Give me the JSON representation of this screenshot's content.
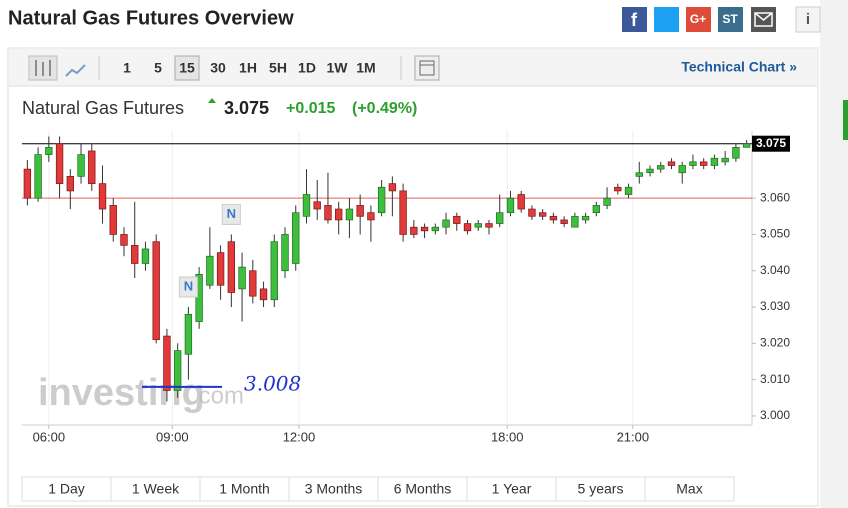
{
  "header": {
    "title": "Natural Gas Futures Overview",
    "share_icons": [
      "G+",
      "ST"
    ]
  },
  "toolbar": {
    "intervals": [
      "1",
      "5",
      "15",
      "30",
      "1H",
      "5H",
      "1D",
      "1W",
      "1M"
    ],
    "selected": "15",
    "link": "Technical Chart »"
  },
  "quote": {
    "name": "Natural Gas Futures",
    "price": "3.075",
    "change": "+0.015",
    "change_pct": "(+0.49%)"
  },
  "watermark": [
    "investing",
    ".com"
  ],
  "chart_data": {
    "type": "candlestick",
    "up_color": "#3dbf3d",
    "down_color": "#e03a3a",
    "open": [
      3.068,
      3.06,
      3.072,
      3.075,
      3.066,
      3.066,
      3.073,
      3.064,
      3.058,
      3.05,
      3.047,
      3.042,
      3.048,
      3.022,
      3.007,
      3.017,
      3.026,
      3.036,
      3.045,
      3.048,
      3.035,
      3.04,
      3.035,
      3.032,
      3.04,
      3.042,
      3.055,
      3.059,
      3.058,
      3.057,
      3.054,
      3.058,
      3.056,
      3.056,
      3.064,
      3.062,
      3.052,
      3.052,
      3.051,
      3.052,
      3.055,
      3.053,
      3.052,
      3.053,
      3.053,
      3.056,
      3.061,
      3.057,
      3.056,
      3.055,
      3.054,
      3.052,
      3.054,
      3.056,
      3.058,
      3.063,
      3.061,
      3.066,
      3.067,
      3.068,
      3.07,
      3.067,
      3.069,
      3.07,
      3.069,
      3.07,
      3.071,
      3.074
    ],
    "high": [
      3.0705,
      3.074,
      3.077,
      3.077,
      3.068,
      3.075,
      3.075,
      3.069,
      3.06,
      3.052,
      3.059,
      3.048,
      3.05,
      3.024,
      3.02,
      3.03,
      3.041,
      3.052,
      3.047,
      3.05,
      3.045,
      3.043,
      3.037,
      3.05,
      3.052,
      3.058,
      3.068,
      3.065,
      3.067,
      3.059,
      3.06,
      3.061,
      3.058,
      3.065,
      3.066,
      3.064,
      3.054,
      3.053,
      3.053,
      3.056,
      3.056,
      3.054,
      3.054,
      3.054,
      3.061,
      3.062,
      3.062,
      3.058,
      3.057,
      3.056,
      3.055,
      3.056,
      3.056,
      3.059,
      3.063,
      3.064,
      3.064,
      3.07,
      3.069,
      3.07,
      3.071,
      3.07,
      3.072,
      3.071,
      3.072,
      3.073,
      3.075,
      3.076
    ],
    "low": [
      3.058,
      3.059,
      3.07,
      3.06,
      3.057,
      3.064,
      3.062,
      3.053,
      3.048,
      3.044,
      3.038,
      3.04,
      3.02,
      3.004,
      3.005,
      3.01,
      3.024,
      3.035,
      3.032,
      3.03,
      3.026,
      3.031,
      3.03,
      3.03,
      3.038,
      3.04,
      3.053,
      3.054,
      3.053,
      3.05,
      3.049,
      3.05,
      3.048,
      3.055,
      3.055,
      3.048,
      3.049,
      3.049,
      3.05,
      3.05,
      3.051,
      3.05,
      3.051,
      3.05,
      3.052,
      3.055,
      3.056,
      3.054,
      3.054,
      3.053,
      3.052,
      3.052,
      3.053,
      3.055,
      3.057,
      3.061,
      3.06,
      3.064,
      3.066,
      3.067,
      3.068,
      3.064,
      3.068,
      3.068,
      3.068,
      3.069,
      3.07,
      3.074
    ],
    "close": [
      3.06,
      3.072,
      3.074,
      3.064,
      3.062,
      3.072,
      3.064,
      3.057,
      3.05,
      3.047,
      3.042,
      3.046,
      3.021,
      3.007,
      3.018,
      3.028,
      3.039,
      3.044,
      3.036,
      3.034,
      3.041,
      3.033,
      3.032,
      3.048,
      3.05,
      3.056,
      3.061,
      3.057,
      3.054,
      3.054,
      3.057,
      3.055,
      3.054,
      3.063,
      3.062,
      3.05,
      3.05,
      3.051,
      3.052,
      3.054,
      3.053,
      3.051,
      3.053,
      3.052,
      3.056,
      3.06,
      3.057,
      3.055,
      3.055,
      3.054,
      3.053,
      3.055,
      3.055,
      3.058,
      3.06,
      3.062,
      3.063,
      3.067,
      3.068,
      3.069,
      3.069,
      3.069,
      3.07,
      3.069,
      3.071,
      3.071,
      3.074,
      3.075
    ],
    "xlim": [
      -0.5,
      67.5
    ],
    "xticks": [
      {
        "value": 2,
        "label": "06:00"
      },
      {
        "value": 13.5,
        "label": "09:00"
      },
      {
        "value": 25.3,
        "label": "12:00"
      },
      {
        "value": 44.7,
        "label": "18:00"
      },
      {
        "value": 56.4,
        "label": "21:00"
      }
    ],
    "ylim": [
      2.9975,
      3.0785
    ],
    "yticks": [
      {
        "value": 3,
        "label": "3.000"
      },
      {
        "value": 3.01,
        "label": "3.010"
      },
      {
        "value": 3.02,
        "label": "3.020"
      },
      {
        "value": 3.03,
        "label": "3.030"
      },
      {
        "value": 3.04,
        "label": "3.040"
      },
      {
        "value": 3.05,
        "label": "3.050"
      },
      {
        "value": 3.06,
        "label": "3.060"
      }
    ],
    "grid": "x",
    "last": 3.075,
    "reference_line": {
      "value": 3.06,
      "color": "#e06060"
    },
    "news": [
      {
        "x": 15,
        "label": "N"
      },
      {
        "x": 19,
        "label": "N"
      }
    ],
    "annotation": {
      "text": "3.008",
      "value": 3.008,
      "color": "#2233cc"
    }
  },
  "ranges": [
    "1 Day",
    "1 Week",
    "1 Month",
    "3 Months",
    "6 Months",
    "1 Year",
    "5 years",
    "Max"
  ]
}
